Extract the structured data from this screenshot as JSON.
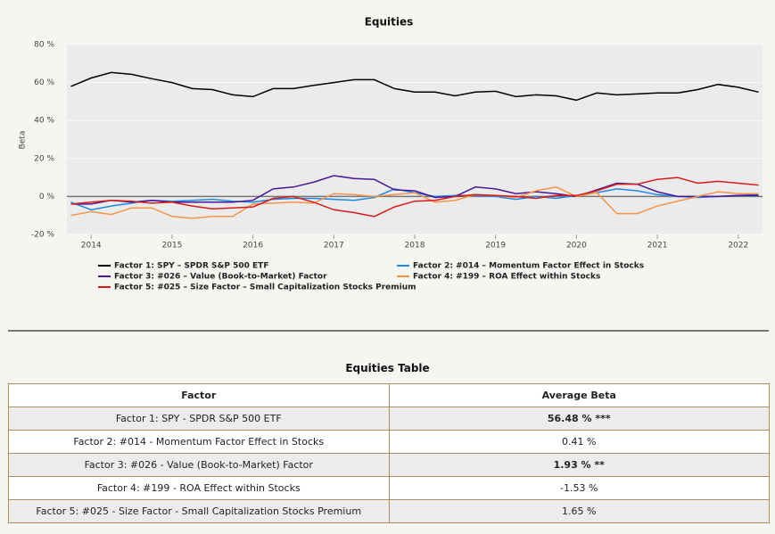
{
  "chart_data": {
    "type": "line",
    "title": "Equities",
    "y_label": "Beta",
    "x": [
      2013.75,
      2014,
      2014.25,
      2014.5,
      2014.75,
      2015,
      2015.25,
      2015.5,
      2015.75,
      2016,
      2016.25,
      2016.5,
      2016.75,
      2017,
      2017.25,
      2017.5,
      2017.75,
      2018,
      2018.25,
      2018.5,
      2018.75,
      2019,
      2019.25,
      2019.5,
      2019.75,
      2020,
      2020.25,
      2020.5,
      2020.75,
      2021,
      2021.25,
      2021.5,
      2021.75,
      2022,
      2022.25
    ],
    "xlim": [
      2013.7,
      2022.3
    ],
    "xticks": [
      2014,
      2015,
      2016,
      2017,
      2018,
      2019,
      2020,
      2021,
      2022
    ],
    "ylim": [
      -20,
      80
    ],
    "yticks": [
      {
        "value": -20,
        "label": "-20 %"
      },
      {
        "value": 0,
        "label": "0 %"
      },
      {
        "value": 20,
        "label": "20 %"
      },
      {
        "value": 40,
        "label": "40 %"
      },
      {
        "value": 60,
        "label": "60 %"
      },
      {
        "value": 80,
        "label": "80 %"
      }
    ],
    "grid": true,
    "series": [
      {
        "name": "Factor 1: SPY – SPDR S&P 500 ETF",
        "color": "#000000",
        "values": [
          58,
          62.4,
          65.3,
          64.3,
          62,
          60,
          56.8,
          56.3,
          53.5,
          52.6,
          56.8,
          56.8,
          58.5,
          60,
          61.5,
          61.5,
          56.8,
          55,
          55,
          53,
          55,
          55.4,
          52.6,
          53.5,
          53,
          50.7,
          54.5,
          53.5,
          54,
          54.5,
          54.5,
          56.3,
          59,
          57.5,
          55
        ]
      },
      {
        "name": "Factor 2: #014 – Momentum Factor Effect in Stocks",
        "color": "#1e88e5",
        "values": [
          -3,
          -7,
          -5,
          -3.5,
          -2,
          -2.5,
          -2,
          -1.5,
          -2.5,
          -3,
          -1.5,
          -1,
          -1,
          -1.5,
          -2,
          -0.5,
          4,
          2,
          0,
          0.5,
          0.5,
          0,
          -1.5,
          0,
          -1,
          0.5,
          2,
          4,
          3,
          1,
          0,
          -0.5,
          0,
          0.5,
          1
        ]
      },
      {
        "name": "Factor 3: #026 – Value (Book-to-Market) Factor",
        "color": "#4a1796",
        "values": [
          -4,
          -4,
          -2,
          -3,
          -2,
          -3,
          -3,
          -3,
          -3,
          -2,
          4,
          5,
          7.5,
          11,
          9.5,
          9,
          3.5,
          3,
          -0.5,
          0,
          5,
          4,
          1.5,
          2.5,
          1.5,
          0,
          3.5,
          7,
          6.5,
          2.5,
          0,
          0,
          0,
          0.5,
          0.5
        ]
      },
      {
        "name": "Factor 4: #199 – ROA Effect within Stocks",
        "color": "#f4944a",
        "values": [
          -10,
          -8,
          -9.5,
          -6,
          -6,
          -10.5,
          -11.5,
          -10.5,
          -10.5,
          -4,
          -3.5,
          -3,
          -3.5,
          1.5,
          1,
          0,
          1,
          2,
          -3,
          -2,
          1,
          0.5,
          -0.5,
          3,
          5,
          0,
          2,
          -9,
          -9,
          -5,
          -2.5,
          0,
          2.5,
          1.5,
          1.5
        ]
      },
      {
        "name": "Factor 5: #025 – Size Factor – Small Capitalization Stocks Premium",
        "color": "#d81b1b",
        "values": [
          -4,
          -3,
          -2,
          -2.5,
          -3.5,
          -3,
          -5,
          -6.5,
          -6,
          -5.5,
          -1,
          0,
          -3,
          -7,
          -8.5,
          -10.5,
          -5.5,
          -2.5,
          -2,
          0,
          1,
          0.5,
          0,
          -1,
          0.5,
          0.5,
          3,
          6.5,
          6.5,
          9,
          10,
          7,
          8,
          7,
          6
        ]
      }
    ]
  },
  "table": {
    "title": "Equities Table",
    "header": [
      "Factor",
      "Average Beta"
    ],
    "rows": [
      {
        "factor": "Factor 1: SPY - SPDR S&P 500 ETF",
        "average_beta": "56.48 % ***",
        "bold": true
      },
      {
        "factor": "Factor 2: #014 - Momentum Factor Effect in Stocks",
        "average_beta": "0.41 %",
        "bold": false
      },
      {
        "factor": "Factor 3: #026 - Value (Book-to-Market) Factor",
        "average_beta": "1.93 % **",
        "bold": true
      },
      {
        "factor": "Factor 4: #199 - ROA Effect within Stocks",
        "average_beta": "-1.53 %",
        "bold": false
      },
      {
        "factor": "Factor 5: #025 - Size Factor - Small Capitalization Stocks Premium",
        "average_beta": "1.65 %",
        "bold": false
      }
    ]
  }
}
